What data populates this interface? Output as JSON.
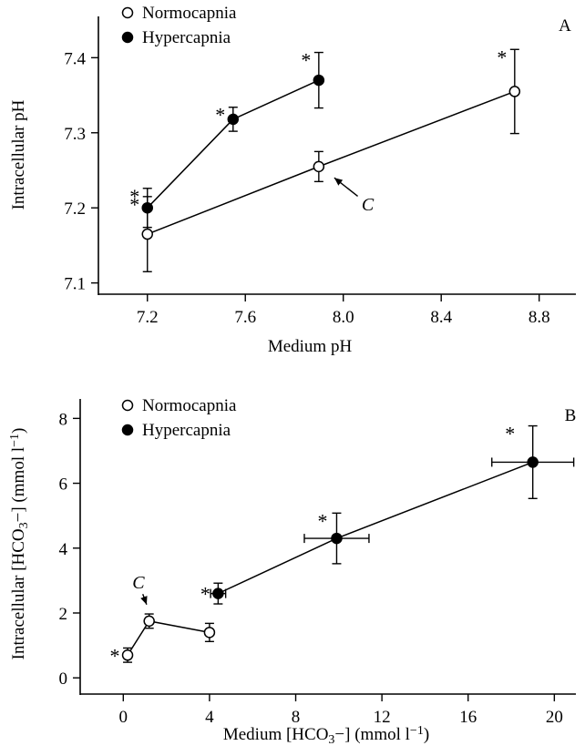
{
  "chart_data": [
    {
      "type": "line",
      "panel_label": "A",
      "xlabel": "Medium pH",
      "ylabel": "Intracellular pH",
      "xlim": [
        7.0,
        8.95
      ],
      "ylim": [
        7.085,
        7.455
      ],
      "x_ticks": [
        7.2,
        7.6,
        8.0,
        8.4,
        8.8
      ],
      "x_tick_labels": [
        "7.2",
        "7.6",
        "8.0",
        "8.4",
        "8.8"
      ],
      "y_ticks": [
        7.1,
        7.2,
        7.3,
        7.4
      ],
      "y_tick_labels": [
        "7.1",
        "7.2",
        "7.3",
        "7.4"
      ],
      "legend": {
        "position": "top-left"
      },
      "series": [
        {
          "name": "Normocapnia",
          "marker": "open-circle",
          "x": [
            7.2,
            7.9,
            8.7
          ],
          "y": [
            7.165,
            7.255,
            7.355
          ],
          "yerr": [
            0.05,
            0.02,
            0.056
          ],
          "xerr": [
            0,
            0,
            0
          ],
          "significant": [
            true,
            false,
            true
          ]
        },
        {
          "name": "Hypercapnia",
          "marker": "filled-circle",
          "x": [
            7.2,
            7.55,
            7.9
          ],
          "y": [
            7.2,
            7.318,
            7.37
          ],
          "yerr": [
            0.026,
            0.016,
            0.037
          ],
          "xerr": [
            0,
            0,
            0
          ],
          "significant": [
            true,
            true,
            true
          ]
        }
      ],
      "annotations": [
        {
          "text": "C",
          "x": 8.1,
          "y": 7.205,
          "arrow_to_x": 7.94,
          "arrow_to_y": 7.246
        },
        {
          "text": "*",
          "series": 0,
          "point": 0
        },
        {
          "text": "*",
          "series": 0,
          "point": 2
        },
        {
          "text": "*",
          "series": 1,
          "point": 0
        },
        {
          "text": "*",
          "series": 1,
          "point": 1
        },
        {
          "text": "*",
          "series": 1,
          "point": 2
        }
      ]
    },
    {
      "type": "line",
      "panel_label": "B",
      "xlabel_parts": [
        "Medium [HCO",
        "3",
        "−]  (mmol l",
        "−1",
        ")"
      ],
      "ylabel_parts": [
        "Intracellular [HCO",
        "3",
        "−]  (mmol l",
        "−1",
        ")"
      ],
      "xlim": [
        -2.0,
        21.0
      ],
      "ylim": [
        -0.5,
        8.6
      ],
      "x_ticks": [
        0,
        4,
        8,
        12,
        16,
        20
      ],
      "x_tick_labels": [
        "0",
        "4",
        "8",
        "12",
        "16",
        "20"
      ],
      "y_ticks": [
        0,
        2,
        4,
        6,
        8
      ],
      "y_tick_labels": [
        "0",
        "2",
        "4",
        "6",
        "8"
      ],
      "legend": {
        "position": "top-left"
      },
      "series": [
        {
          "name": "Normocapnia",
          "marker": "open-circle",
          "x": [
            0.2,
            1.2,
            4.0
          ],
          "y": [
            0.7,
            1.75,
            1.4
          ],
          "yerr": [
            0.22,
            0.22,
            0.28
          ],
          "xerr": [
            0,
            0,
            0
          ],
          "significant": [
            true,
            false,
            false
          ]
        },
        {
          "name": "Hypercapnia",
          "marker": "filled-circle",
          "x": [
            4.4,
            9.9,
            19.0
          ],
          "y": [
            2.6,
            4.3,
            6.65
          ],
          "yerr": [
            0.32,
            0.78,
            1.12
          ],
          "xerr": [
            0.35,
            1.5,
            1.9
          ],
          "significant": [
            true,
            true,
            true
          ]
        }
      ],
      "annotations": [
        {
          "text": "C",
          "x": 0.7,
          "y": 2.95,
          "arrow_to_x": 1.2,
          "arrow_to_y": 2.05
        },
        {
          "text": "*",
          "series": 0,
          "point": 0
        },
        {
          "text": "*",
          "series": 1,
          "point": 0
        },
        {
          "text": "*",
          "series": 1,
          "point": 1
        },
        {
          "text": "*",
          "series": 1,
          "point": 2
        }
      ]
    }
  ]
}
